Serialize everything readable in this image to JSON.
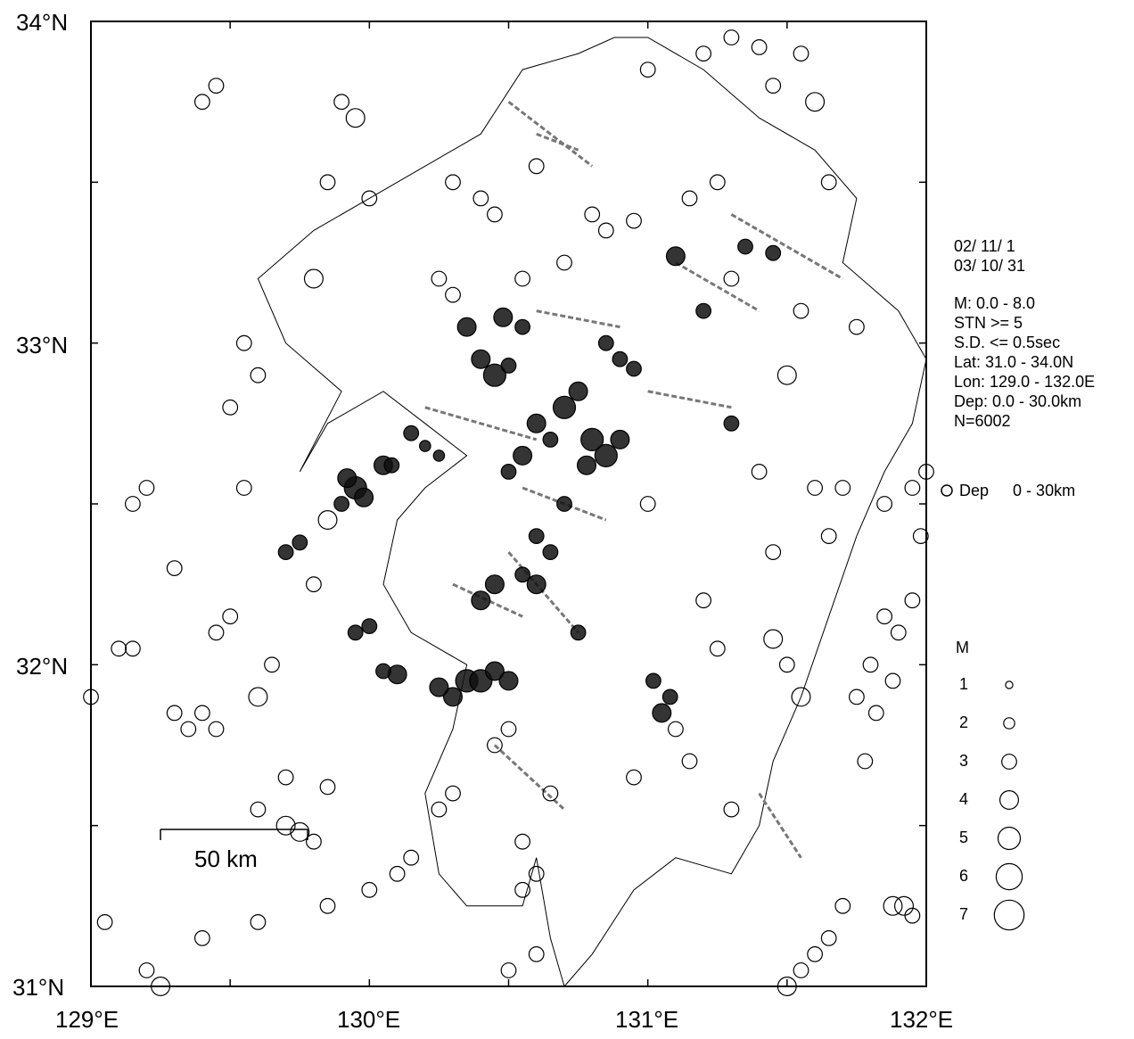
{
  "axes": {
    "lon_labels": [
      "129°E",
      "130°E",
      "131°E",
      "132°E"
    ],
    "lat_labels": [
      "34°N",
      "33°N",
      "32°N",
      "31°N"
    ],
    "lon_range": [
      129.0,
      132.0
    ],
    "lat_range": [
      31.0,
      34.0
    ]
  },
  "info": {
    "date_start": "02/ 11/ 1",
    "date_end": "03/ 10/ 31",
    "magnitude": "M: 0.0 - 8.0",
    "stations": "STN >= 5",
    "sd": "S.D. <= 0.5sec",
    "lat": "Lat: 31.0 - 34.0N",
    "lon": "Lon: 129.0 - 132.0E",
    "depth": "Dep: 0.0 - 30.0km",
    "count": "N=6002"
  },
  "depth_legend": {
    "label": "Dep",
    "range": "0 -  30km"
  },
  "magnitude_legend": {
    "title": "M",
    "items": [
      {
        "label": "1",
        "m": 1
      },
      {
        "label": "2",
        "m": 2
      },
      {
        "label": "3",
        "m": 3
      },
      {
        "label": "4",
        "m": 4
      },
      {
        "label": "5",
        "m": 5
      },
      {
        "label": "6",
        "m": 6
      },
      {
        "label": "7",
        "m": 7
      }
    ]
  },
  "scale_bar": {
    "label": "50 km"
  },
  "colors": {
    "event_outline": "#000000",
    "event_fill": "#111111",
    "fault": "#777777",
    "coast": "#000000"
  },
  "chart_data": {
    "type": "scatter",
    "title": "",
    "xlim": [
      129.0,
      132.0
    ],
    "ylim": [
      31.0,
      34.0
    ],
    "series": [
      {
        "points": [
          [
            130.4,
            32.95,
            4
          ],
          [
            130.45,
            32.9,
            5
          ],
          [
            130.5,
            32.93,
            3
          ],
          [
            130.35,
            33.05,
            4
          ],
          [
            130.48,
            33.08,
            4
          ],
          [
            130.55,
            33.05,
            3
          ],
          [
            130.7,
            32.8,
            5
          ],
          [
            130.75,
            32.85,
            4
          ],
          [
            130.8,
            32.7,
            5
          ],
          [
            130.85,
            32.65,
            5
          ],
          [
            130.9,
            32.7,
            4
          ],
          [
            130.78,
            32.62,
            4
          ],
          [
            130.6,
            32.75,
            4
          ],
          [
            130.65,
            32.7,
            3
          ],
          [
            130.55,
            32.65,
            4
          ],
          [
            130.5,
            32.6,
            3
          ],
          [
            130.45,
            32.25,
            4
          ],
          [
            130.4,
            32.2,
            4
          ],
          [
            130.55,
            32.28,
            3
          ],
          [
            130.6,
            32.25,
            4
          ],
          [
            130.35,
            31.95,
            5
          ],
          [
            130.3,
            31.9,
            4
          ],
          [
            130.4,
            31.95,
            5
          ],
          [
            130.45,
            31.98,
            4
          ],
          [
            130.5,
            31.95,
            4
          ],
          [
            130.25,
            31.93,
            4
          ],
          [
            130.1,
            31.97,
            4
          ],
          [
            130.05,
            31.98,
            3
          ],
          [
            129.95,
            32.55,
            5
          ],
          [
            129.98,
            32.52,
            4
          ],
          [
            129.92,
            32.58,
            4
          ],
          [
            130.05,
            32.62,
            4
          ],
          [
            129.75,
            32.38,
            3
          ],
          [
            129.7,
            32.35,
            3
          ],
          [
            130.0,
            32.12,
            3
          ],
          [
            129.95,
            32.1,
            3
          ],
          [
            131.05,
            31.85,
            4
          ],
          [
            131.02,
            31.95,
            3
          ],
          [
            131.08,
            31.9,
            3
          ],
          [
            131.3,
            32.75,
            3
          ],
          [
            131.2,
            33.1,
            3
          ],
          [
            131.1,
            33.27,
            4
          ],
          [
            131.35,
            33.3,
            3
          ],
          [
            131.45,
            33.28,
            3
          ],
          [
            130.75,
            32.1,
            3
          ],
          [
            130.6,
            32.4,
            3
          ],
          [
            130.65,
            32.35,
            3
          ],
          [
            130.7,
            32.5,
            3
          ],
          [
            130.85,
            33.0,
            3
          ],
          [
            130.9,
            32.95,
            3
          ],
          [
            130.95,
            32.92,
            3
          ],
          [
            130.2,
            32.68,
            2
          ],
          [
            130.15,
            32.72,
            3
          ],
          [
            130.25,
            32.65,
            2
          ],
          [
            130.08,
            32.62,
            3
          ],
          [
            129.9,
            32.5,
            3
          ]
        ]
      },
      {
        "points": [
          [
            131.85,
            32.15,
            3
          ],
          [
            131.9,
            32.1,
            3
          ],
          [
            131.8,
            32.0,
            3
          ],
          [
            131.95,
            32.2,
            3
          ],
          [
            131.75,
            31.9,
            3
          ],
          [
            131.82,
            31.85,
            3
          ],
          [
            131.88,
            31.95,
            3
          ],
          [
            131.78,
            31.7,
            3
          ],
          [
            131.92,
            31.25,
            4
          ],
          [
            131.88,
            31.25,
            4
          ],
          [
            131.95,
            31.22,
            3
          ],
          [
            131.6,
            31.1,
            3
          ],
          [
            131.65,
            31.15,
            3
          ],
          [
            131.55,
            31.05,
            3
          ],
          [
            131.5,
            31.0,
            4
          ],
          [
            131.7,
            31.25,
            3
          ],
          [
            131.98,
            32.4,
            3
          ],
          [
            131.95,
            32.55,
            3
          ],
          [
            132.0,
            32.6,
            3
          ],
          [
            131.85,
            32.5,
            3
          ],
          [
            129.1,
            32.05,
            3
          ],
          [
            129.15,
            32.05,
            3
          ],
          [
            129.3,
            31.85,
            3
          ],
          [
            129.35,
            31.8,
            3
          ],
          [
            129.45,
            31.8,
            3
          ],
          [
            129.4,
            31.85,
            3
          ],
          [
            129.5,
            32.15,
            3
          ],
          [
            129.45,
            32.1,
            3
          ],
          [
            129.55,
            32.55,
            3
          ],
          [
            129.15,
            32.5,
            3
          ],
          [
            129.2,
            32.55,
            3
          ],
          [
            129.3,
            32.3,
            3
          ],
          [
            129.6,
            31.55,
            3
          ],
          [
            129.7,
            31.5,
            4
          ],
          [
            129.75,
            31.48,
            4
          ],
          [
            129.0,
            31.9,
            3
          ],
          [
            129.05,
            31.2,
            3
          ],
          [
            129.2,
            31.05,
            3
          ],
          [
            129.25,
            31.0,
            4
          ],
          [
            129.4,
            31.15,
            3
          ],
          [
            129.6,
            31.2,
            3
          ],
          [
            129.8,
            31.45,
            3
          ],
          [
            129.85,
            31.62,
            3
          ],
          [
            129.7,
            31.65,
            3
          ],
          [
            129.6,
            31.9,
            4
          ],
          [
            129.65,
            32.0,
            3
          ],
          [
            129.8,
            32.25,
            3
          ],
          [
            129.85,
            32.45,
            4
          ],
          [
            129.6,
            32.9,
            3
          ],
          [
            129.5,
            32.8,
            3
          ],
          [
            129.55,
            33.0,
            3
          ],
          [
            129.8,
            33.2,
            4
          ],
          [
            129.95,
            33.7,
            4
          ],
          [
            129.9,
            33.75,
            3
          ],
          [
            129.4,
            33.75,
            3
          ],
          [
            129.45,
            33.8,
            3
          ],
          [
            129.85,
            33.5,
            3
          ],
          [
            130.0,
            33.45,
            3
          ],
          [
            130.3,
            33.5,
            3
          ],
          [
            130.6,
            33.55,
            3
          ],
          [
            130.8,
            33.4,
            3
          ],
          [
            130.95,
            33.38,
            3
          ],
          [
            131.0,
            33.85,
            3
          ],
          [
            131.2,
            33.9,
            3
          ],
          [
            131.3,
            33.95,
            3
          ],
          [
            131.4,
            33.92,
            3
          ],
          [
            131.55,
            33.9,
            3
          ],
          [
            131.6,
            33.75,
            4
          ],
          [
            131.45,
            33.8,
            3
          ],
          [
            131.65,
            33.5,
            3
          ],
          [
            131.5,
            32.9,
            4
          ],
          [
            131.0,
            32.5,
            3
          ],
          [
            131.4,
            32.6,
            3
          ],
          [
            131.6,
            32.55,
            3
          ],
          [
            131.7,
            32.55,
            3
          ],
          [
            131.65,
            32.4,
            3
          ],
          [
            131.45,
            32.35,
            3
          ],
          [
            131.2,
            32.2,
            3
          ],
          [
            131.25,
            32.05,
            3
          ],
          [
            131.45,
            32.08,
            4
          ],
          [
            131.5,
            32.0,
            3
          ],
          [
            131.55,
            31.9,
            4
          ],
          [
            130.3,
            31.6,
            3
          ],
          [
            130.25,
            31.55,
            3
          ],
          [
            130.55,
            31.3,
            3
          ],
          [
            130.6,
            31.35,
            3
          ],
          [
            130.55,
            31.45,
            3
          ],
          [
            130.65,
            31.6,
            3
          ],
          [
            130.1,
            31.35,
            3
          ],
          [
            130.15,
            31.4,
            3
          ],
          [
            130.0,
            31.3,
            3
          ],
          [
            129.85,
            31.25,
            3
          ],
          [
            130.5,
            31.8,
            3
          ],
          [
            130.45,
            31.75,
            3
          ],
          [
            130.6,
            31.1,
            3
          ],
          [
            130.5,
            31.05,
            3
          ],
          [
            130.95,
            31.65,
            3
          ],
          [
            131.1,
            31.8,
            3
          ],
          [
            131.15,
            31.7,
            3
          ],
          [
            131.3,
            31.55,
            3
          ],
          [
            130.4,
            33.45,
            3
          ],
          [
            130.45,
            33.4,
            3
          ],
          [
            130.25,
            33.2,
            3
          ],
          [
            130.3,
            33.15,
            3
          ],
          [
            130.55,
            33.2,
            3
          ],
          [
            130.7,
            33.25,
            3
          ],
          [
            130.85,
            33.35,
            3
          ],
          [
            131.15,
            33.45,
            3
          ],
          [
            131.25,
            33.5,
            3
          ],
          [
            131.3,
            33.2,
            3
          ],
          [
            131.55,
            33.1,
            3
          ],
          [
            131.75,
            33.05,
            3
          ]
        ]
      }
    ]
  }
}
